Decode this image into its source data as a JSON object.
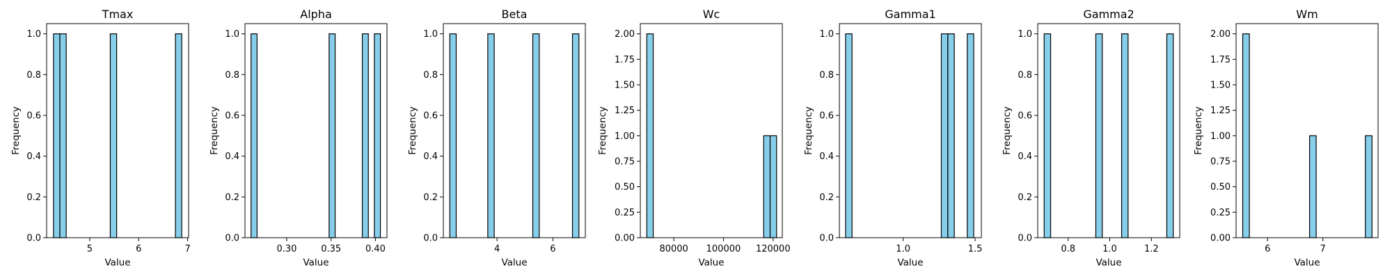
{
  "chart_data": [
    {
      "type": "bar",
      "title": "Tmax",
      "xlabel": "Value",
      "ylabel": "Frequency",
      "xlim": [
        4.12,
        7.02
      ],
      "ylim": [
        0,
        1.05
      ],
      "xticks": [
        5,
        6,
        7
      ],
      "xtick_labels": [
        "5",
        "6",
        "7"
      ],
      "yticks": [
        0,
        0.2,
        0.4,
        0.6,
        0.8,
        1.0
      ],
      "ytick_labels": [
        "0.0",
        "0.2",
        "0.4",
        "0.6",
        "0.8",
        "1.0"
      ],
      "bins": [
        {
          "x0": 4.26,
          "x1": 4.39,
          "count": 1
        },
        {
          "x0": 4.39,
          "x1": 4.52,
          "count": 1
        },
        {
          "x0": 5.42,
          "x1": 5.55,
          "count": 1
        },
        {
          "x0": 6.75,
          "x1": 6.88,
          "count": 1
        }
      ]
    },
    {
      "type": "bar",
      "title": "Alpha",
      "xlabel": "Value",
      "ylabel": "Frequency",
      "xlim": [
        0.253,
        0.413
      ],
      "ylim": [
        0,
        1.05
      ],
      "xticks": [
        0.3,
        0.35,
        0.4
      ],
      "xtick_labels": [
        "0.30",
        "0.35",
        "0.40"
      ],
      "yticks": [
        0,
        0.2,
        0.4,
        0.6,
        0.8,
        1.0
      ],
      "ytick_labels": [
        "0.0",
        "0.2",
        "0.4",
        "0.6",
        "0.8",
        "1.0"
      ],
      "bins": [
        {
          "x0": 0.2598,
          "x1": 0.2666,
          "count": 1
        },
        {
          "x0": 0.3478,
          "x1": 0.3546,
          "count": 1
        },
        {
          "x0": 0.3852,
          "x1": 0.392,
          "count": 1
        },
        {
          "x0": 0.3988,
          "x1": 0.4056,
          "count": 1
        }
      ]
    },
    {
      "type": "bar",
      "title": "Beta",
      "xlabel": "Value",
      "ylabel": "Frequency",
      "xlim": [
        2.08,
        7.16
      ],
      "ylim": [
        0,
        1.05
      ],
      "xticks": [
        4,
        6
      ],
      "xtick_labels": [
        "4",
        "6"
      ],
      "yticks": [
        0,
        0.2,
        0.4,
        0.6,
        0.8,
        1.0
      ],
      "ytick_labels": [
        "0.0",
        "0.2",
        "0.4",
        "0.6",
        "0.8",
        "1.0"
      ],
      "bins": [
        {
          "x0": 2.31,
          "x1": 2.54,
          "count": 1
        },
        {
          "x0": 3.67,
          "x1": 3.9,
          "count": 1
        },
        {
          "x0": 5.28,
          "x1": 5.51,
          "count": 1
        },
        {
          "x0": 6.7,
          "x1": 6.93,
          "count": 1
        }
      ]
    },
    {
      "type": "bar",
      "title": "Wc",
      "xlabel": "Value",
      "ylabel": "Frequency",
      "xlim": [
        66500,
        123700
      ],
      "ylim": [
        0,
        2.1
      ],
      "xticks": [
        80000,
        100000,
        120000
      ],
      "xtick_labels": [
        "80000",
        "100000",
        "120000"
      ],
      "yticks": [
        0,
        0.25,
        0.5,
        0.75,
        1.0,
        1.25,
        1.5,
        1.75,
        2.0
      ],
      "ytick_labels": [
        "0.00",
        "0.25",
        "0.50",
        "0.75",
        "1.00",
        "1.25",
        "1.50",
        "1.75",
        "2.00"
      ],
      "bins": [
        {
          "x0": 69100,
          "x1": 71700,
          "count": 2
        },
        {
          "x0": 116200,
          "x1": 118800,
          "count": 1
        },
        {
          "x0": 118800,
          "x1": 121400,
          "count": 1
        }
      ]
    },
    {
      "type": "bar",
      "title": "Gamma1",
      "xlabel": "Value",
      "ylabel": "Frequency",
      "xlim": [
        0.557,
        1.543
      ],
      "ylim": [
        0,
        1.05
      ],
      "xticks": [
        1.0,
        1.5
      ],
      "xtick_labels": [
        "1.0",
        "1.5"
      ],
      "yticks": [
        0,
        0.2,
        0.4,
        0.6,
        0.8,
        1.0
      ],
      "ytick_labels": [
        "0.0",
        "0.2",
        "0.4",
        "0.6",
        "0.8",
        "1.0"
      ],
      "bins": [
        {
          "x0": 0.6,
          "x1": 0.645,
          "count": 1
        },
        {
          "x0": 1.265,
          "x1": 1.31,
          "count": 1
        },
        {
          "x0": 1.31,
          "x1": 1.355,
          "count": 1
        },
        {
          "x0": 1.445,
          "x1": 1.49,
          "count": 1
        }
      ]
    },
    {
      "type": "bar",
      "title": "Gamma2",
      "xlabel": "Value",
      "ylabel": "Frequency",
      "xlim": [
        0.654,
        1.336
      ],
      "ylim": [
        0,
        1.05
      ],
      "xticks": [
        0.8,
        1.0,
        1.2
      ],
      "xtick_labels": [
        "0.8",
        "1.0",
        "1.2"
      ],
      "yticks": [
        0,
        0.2,
        0.4,
        0.6,
        0.8,
        1.0
      ],
      "ytick_labels": [
        "0.0",
        "0.2",
        "0.4",
        "0.6",
        "0.8",
        "1.0"
      ],
      "bins": [
        {
          "x0": 0.685,
          "x1": 0.716,
          "count": 1
        },
        {
          "x0": 0.933,
          "x1": 0.964,
          "count": 1
        },
        {
          "x0": 1.057,
          "x1": 1.088,
          "count": 1
        },
        {
          "x0": 1.274,
          "x1": 1.305,
          "count": 1
        }
      ]
    },
    {
      "type": "bar",
      "title": "Wm",
      "xlabel": "Value",
      "ylabel": "Frequency",
      "xlim": [
        5.43,
        8.0
      ],
      "ylim": [
        0,
        2.1
      ],
      "xticks": [
        6,
        7
      ],
      "xtick_labels": [
        "6",
        "7"
      ],
      "yticks": [
        0,
        0.25,
        0.5,
        0.75,
        1.0,
        1.25,
        1.5,
        1.75,
        2.0
      ],
      "ytick_labels": [
        "0.00",
        "0.25",
        "0.50",
        "0.75",
        "1.00",
        "1.25",
        "1.50",
        "1.75",
        "2.00"
      ],
      "bins": [
        {
          "x0": 5.55,
          "x1": 5.67,
          "count": 2
        },
        {
          "x0": 6.76,
          "x1": 6.88,
          "count": 1
        },
        {
          "x0": 7.77,
          "x1": 7.89,
          "count": 1
        }
      ]
    }
  ],
  "colors": {
    "bar_fill": "#87ceeb",
    "bar_edge": "#000000",
    "axis": "#000000"
  }
}
